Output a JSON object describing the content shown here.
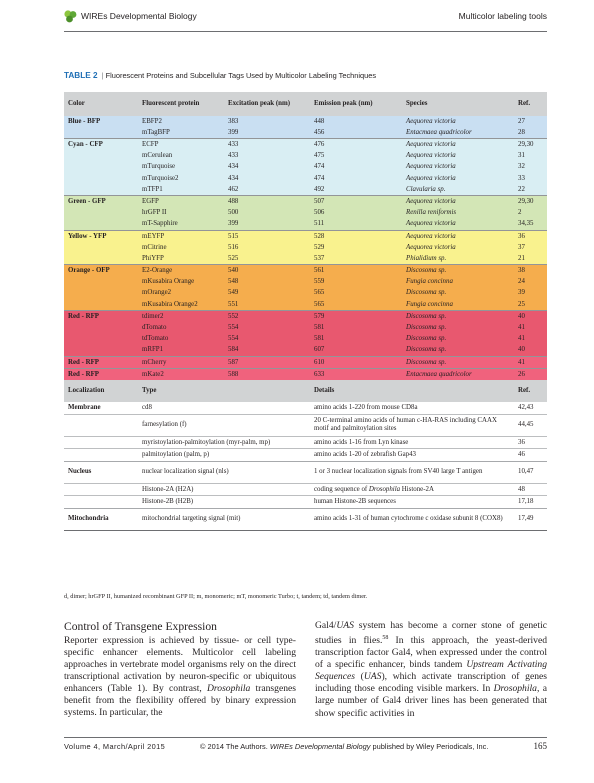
{
  "header": {
    "journal": "WIREs Developmental Biology",
    "running_title": "Multicolor labeling tools"
  },
  "table": {
    "label": "TABLE 2",
    "title": "Fluorescent Proteins and Subcellular Tags Used by Multicolor Labeling Techniques",
    "fp_headers": [
      "Color",
      "Fluorescent protein",
      "Excitation peak (nm)",
      "Emission peak (nm)",
      "Species",
      "Ref."
    ],
    "fp_groups": [
      {
        "color": "Blue - BFP",
        "rows": [
          {
            "protein": "EBFP2",
            "ex": "383",
            "em": "448",
            "species": "Aequorea victoria",
            "ref": "27"
          },
          {
            "protein": "mTagBFP",
            "ex": "399",
            "em": "456",
            "species": "Entacmaea quadricolor",
            "ref": "28"
          }
        ]
      },
      {
        "color": "Cyan - CFP",
        "rows": [
          {
            "protein": "ECFP",
            "ex": "433",
            "em": "476",
            "species": "Aequorea victoria",
            "ref": "29,30"
          },
          {
            "protein": "mCerulean",
            "ex": "433",
            "em": "475",
            "species": "Aequorea victoria",
            "ref": "31"
          },
          {
            "protein": "mTurquoise",
            "ex": "434",
            "em": "474",
            "species": "Aequorea victoria",
            "ref": "32"
          },
          {
            "protein": "mTurquoise2",
            "ex": "434",
            "em": "474",
            "species": "Aequorea victoria",
            "ref": "33"
          },
          {
            "protein": "mTFP1",
            "ex": "462",
            "em": "492",
            "species": "Clavularia sp.",
            "ref": "22"
          }
        ]
      },
      {
        "color": "Green - GFP",
        "rows": [
          {
            "protein": "EGFP",
            "ex": "488",
            "em": "507",
            "species": "Aequorea victoria",
            "ref": "29,30"
          },
          {
            "protein": "hrGFP II",
            "ex": "500",
            "em": "506",
            "species": "Renilla reniformis",
            "ref": "2"
          },
          {
            "protein": "mT-Sapphire",
            "ex": "399",
            "em": "511",
            "species": "Aequorea victoria",
            "ref": "34,35"
          }
        ]
      },
      {
        "color": "Yellow - YFP",
        "rows": [
          {
            "protein": "mEYFP",
            "ex": "515",
            "em": "528",
            "species": "Aequorea victoria",
            "ref": "36"
          },
          {
            "protein": "mCitrine",
            "ex": "516",
            "em": "529",
            "species": "Aequorea victoria",
            "ref": "37"
          },
          {
            "protein": "PhiYFP",
            "ex": "525",
            "em": "537",
            "species": "Phialidium sp.",
            "ref": "21"
          }
        ]
      },
      {
        "color": "Orange - OFP",
        "rows": [
          {
            "protein": "E2-Orange",
            "ex": "540",
            "em": "561",
            "species": "Discosoma sp.",
            "ref": "38"
          },
          {
            "protein": "mKusabira Orange",
            "ex": "548",
            "em": "559",
            "species": "Fungia concinna",
            "ref": "24"
          },
          {
            "protein": "mOrange2",
            "ex": "549",
            "em": "565",
            "species": "Discosoma sp.",
            "ref": "39"
          },
          {
            "protein": "mKusabira Orange2",
            "ex": "551",
            "em": "565",
            "species": "Fungia concinna",
            "ref": "25"
          }
        ]
      },
      {
        "color": "Red - RFP",
        "rows": [
          {
            "protein": "tdimer2",
            "ex": "552",
            "em": "579",
            "species": "Discosoma sp.",
            "ref": "40"
          },
          {
            "protein": "dTomato",
            "ex": "554",
            "em": "581",
            "species": "Discosoma sp.",
            "ref": "41"
          },
          {
            "protein": "tdTomato",
            "ex": "554",
            "em": "581",
            "species": "Discosoma sp.",
            "ref": "41"
          },
          {
            "protein": "mRFP1",
            "ex": "584",
            "em": "607",
            "species": "Discosoma sp.",
            "ref": "40"
          }
        ]
      },
      {
        "color": "Red - RFP",
        "rows": [
          {
            "protein": "mCherry",
            "ex": "587",
            "em": "610",
            "species": "Discosoma sp.",
            "ref": "41"
          }
        ]
      },
      {
        "color": "Red - RFP",
        "rows": [
          {
            "protein": "mKate2",
            "ex": "588",
            "em": "633",
            "species": "Entacmaea quadricolor",
            "ref": "26"
          }
        ]
      }
    ],
    "loc_headers": [
      "Localization",
      "Type",
      "Details",
      "Ref."
    ],
    "loc_groups": [
      {
        "loc": "Membrane",
        "rows": [
          {
            "type": "cd8",
            "details": "amino acids 1-220 from mouse CD8a",
            "ref": "42,43"
          },
          {
            "type": "farnesylation (f)",
            "details": "20 C-terminal amino acids of human c-HA-RAS including CAAX motif and palmitoylation sites",
            "ref": "44,45"
          },
          {
            "type": "myristoylation-palmitoylation (myr-palm, mp)",
            "details": "amino acids 1-16 from Lyn kinase",
            "ref": "36"
          },
          {
            "type": "palmitoylation (palm, p)",
            "details": "amino acids 1-20 of zebrafish Gap43",
            "ref": "46"
          }
        ]
      },
      {
        "loc": "Nucleus",
        "rows": [
          {
            "type": "nuclear localization signal (nls)",
            "details": "1 or 3 nuclear localization signals from SV40 large T antigen",
            "ref": "10,47"
          },
          {
            "type": "Histone-2A (H2A)",
            "details": "coding sequence of Drosophila Histone-2A",
            "ref": "48"
          },
          {
            "type": "Histone-2B (H2B)",
            "details": "human Histone-2B sequences",
            "ref": "17,18"
          }
        ]
      },
      {
        "loc": "Mitochondria",
        "rows": [
          {
            "type": "mitochondrial targeting signal (mit)",
            "details": "amino acids 1-31 of human cytochrome c oxidase subunit 8 (COX8)",
            "ref": "17,49"
          }
        ]
      }
    ],
    "footnote": "d, dimer; hrGFP II, humanized recombinant GFP II; m, monomeric; mT, monomeric Turbo; t, tandem; td, tandem dimer."
  },
  "body": {
    "section_heading": "Control of Transgene Expression",
    "left_paragraph": "Reporter expression is achieved by tissue- or cell type-specific enhancer elements. Multicolor cell labeling approaches in vertebrate model organisms rely on the direct transcriptional activation by neuron-specific or ubiquitous enhancers (Table 1). By contrast, Drosophila transgenes benefit from the flexibility offered by binary expression systems. In particular, the",
    "right_paragraph": "Gal4/UAS system has become a corner stone of genetic studies in flies.58 In this approach, the yeast-derived transcription factor Gal4, when expressed under the control of a specific enhancer, binds tandem Upstream Activating Sequences (UAS), which activate transcription of genes including those encoding visible markers. In Drosophila, a large number of Gal4 driver lines has been generated that show specific activities in"
  },
  "footer": {
    "volume": "Volume 4, March/April 2015",
    "copyright_prefix": "© 2014 The Authors.",
    "copyright_journal": "WIREs Developmental Biology",
    "copyright_suffix": "published by Wiley Periodicals, Inc.",
    "page_number": "165"
  }
}
